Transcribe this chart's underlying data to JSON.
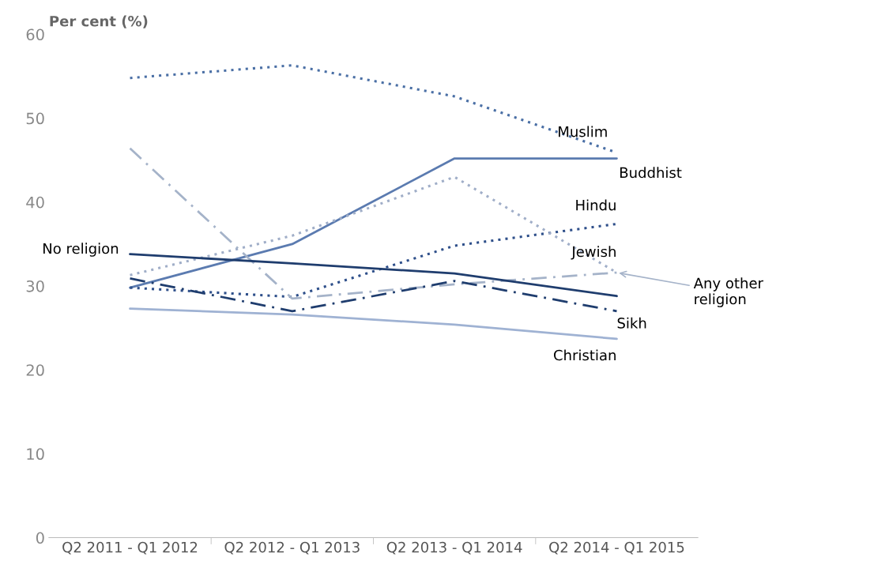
{
  "chart_data": {
    "type": "line",
    "ylabel": "Per cent (%)",
    "categories": [
      "Q2 2011 - Q1 2012",
      "Q2 2012 - Q1 2013",
      "Q2 2013 - Q1 2014",
      "Q2 2014 - Q1 2015"
    ],
    "ylim": [
      0,
      60
    ],
    "yticks": [
      0,
      10,
      20,
      30,
      40,
      50,
      60
    ],
    "grid": false,
    "marker": "none",
    "series": [
      {
        "name": "Muslim",
        "color": "#4a6fa5",
        "line_style": "dotted",
        "values": [
          54.8,
          56.3,
          52.6,
          45.9
        ]
      },
      {
        "name": "Buddhist",
        "color": "#5b7bb0",
        "line_style": "solid",
        "values": [
          29.8,
          35.0,
          45.2,
          45.2
        ]
      },
      {
        "name": "Hindu",
        "color": "#2e4f8a",
        "line_style": "dotted",
        "values": [
          29.8,
          28.7,
          34.8,
          37.4
        ]
      },
      {
        "name": "Jewish",
        "color": "#a0aec8",
        "line_style": "dotted",
        "values": [
          31.3,
          36.0,
          43.0,
          31.6
        ]
      },
      {
        "name": "Any other religion",
        "color": "#a5b3c9",
        "line_style": "dashdot",
        "values": [
          46.4,
          28.5,
          30.2,
          31.6
        ]
      },
      {
        "name": "No religion",
        "color": "#1f3d6e",
        "line_style": "solid",
        "values": [
          33.8,
          32.7,
          31.5,
          28.8
        ]
      },
      {
        "name": "Sikh",
        "color": "#1f3d6e",
        "line_style": "dashdot",
        "values": [
          30.9,
          27.0,
          30.6,
          27.0
        ]
      },
      {
        "name": "Christian",
        "color": "#9fb2d3",
        "line_style": "solid",
        "values": [
          27.3,
          26.6,
          25.4,
          23.7
        ]
      }
    ]
  }
}
